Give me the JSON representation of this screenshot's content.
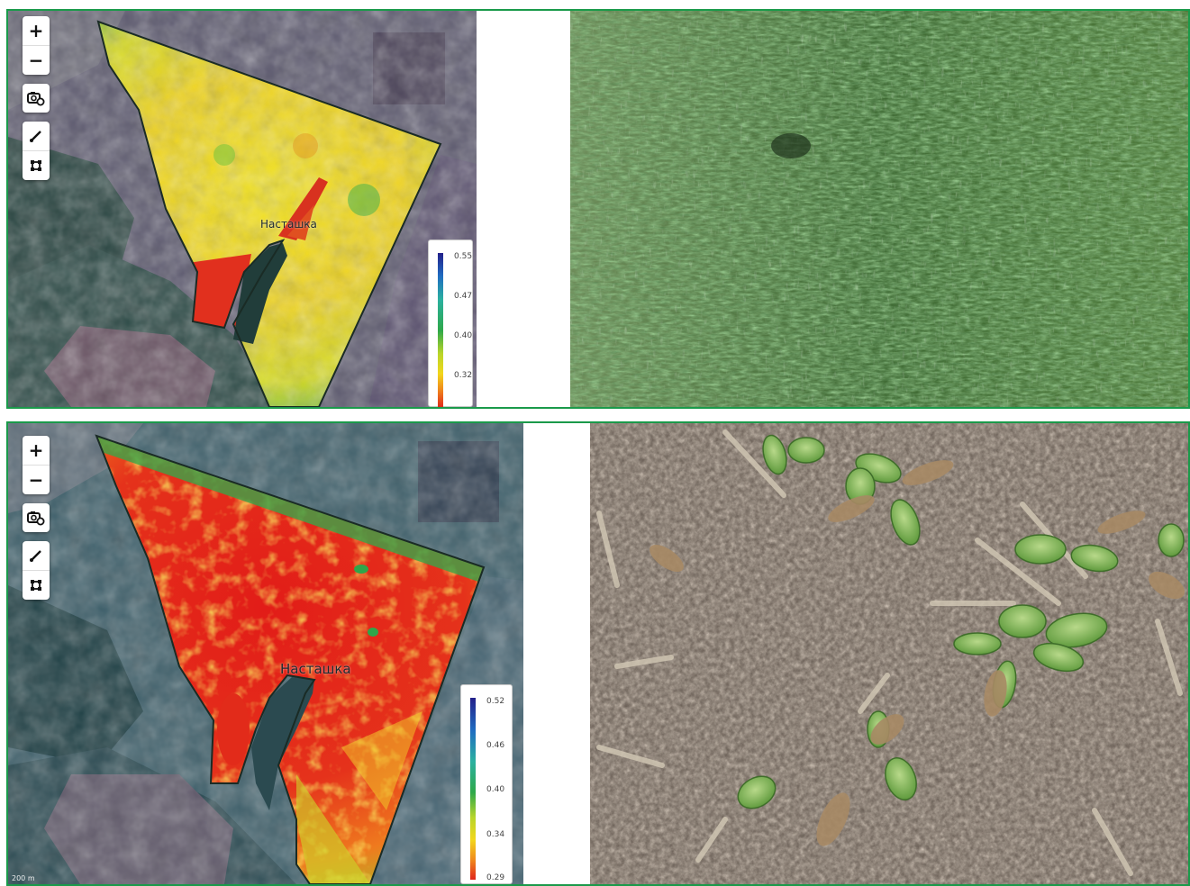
{
  "top_view": {
    "field_name": "Насташка",
    "legend_ticks": [
      "0.55",
      "0.47",
      "0.40",
      "0.32"
    ],
    "controls": {
      "zoom_in": "+",
      "zoom_out": "−"
    }
  },
  "bottom_view": {
    "field_name": "Насташка",
    "legend_ticks": [
      "0.52",
      "0.46",
      "0.40",
      "0.34",
      "0.29"
    ],
    "controls": {
      "zoom_in": "+",
      "zoom_out": "−"
    },
    "scale_text": "200 m"
  },
  "colors": {
    "frame": "#1a9a4a",
    "ndvi_low": "#e0251b",
    "ndvi_mid": "#f4e01c",
    "ndvi_high": "#1f3a8f",
    "field_outline": "#1a2b25"
  },
  "icons": [
    "camera-settings-icon",
    "ruler-icon",
    "area-select-icon"
  ]
}
